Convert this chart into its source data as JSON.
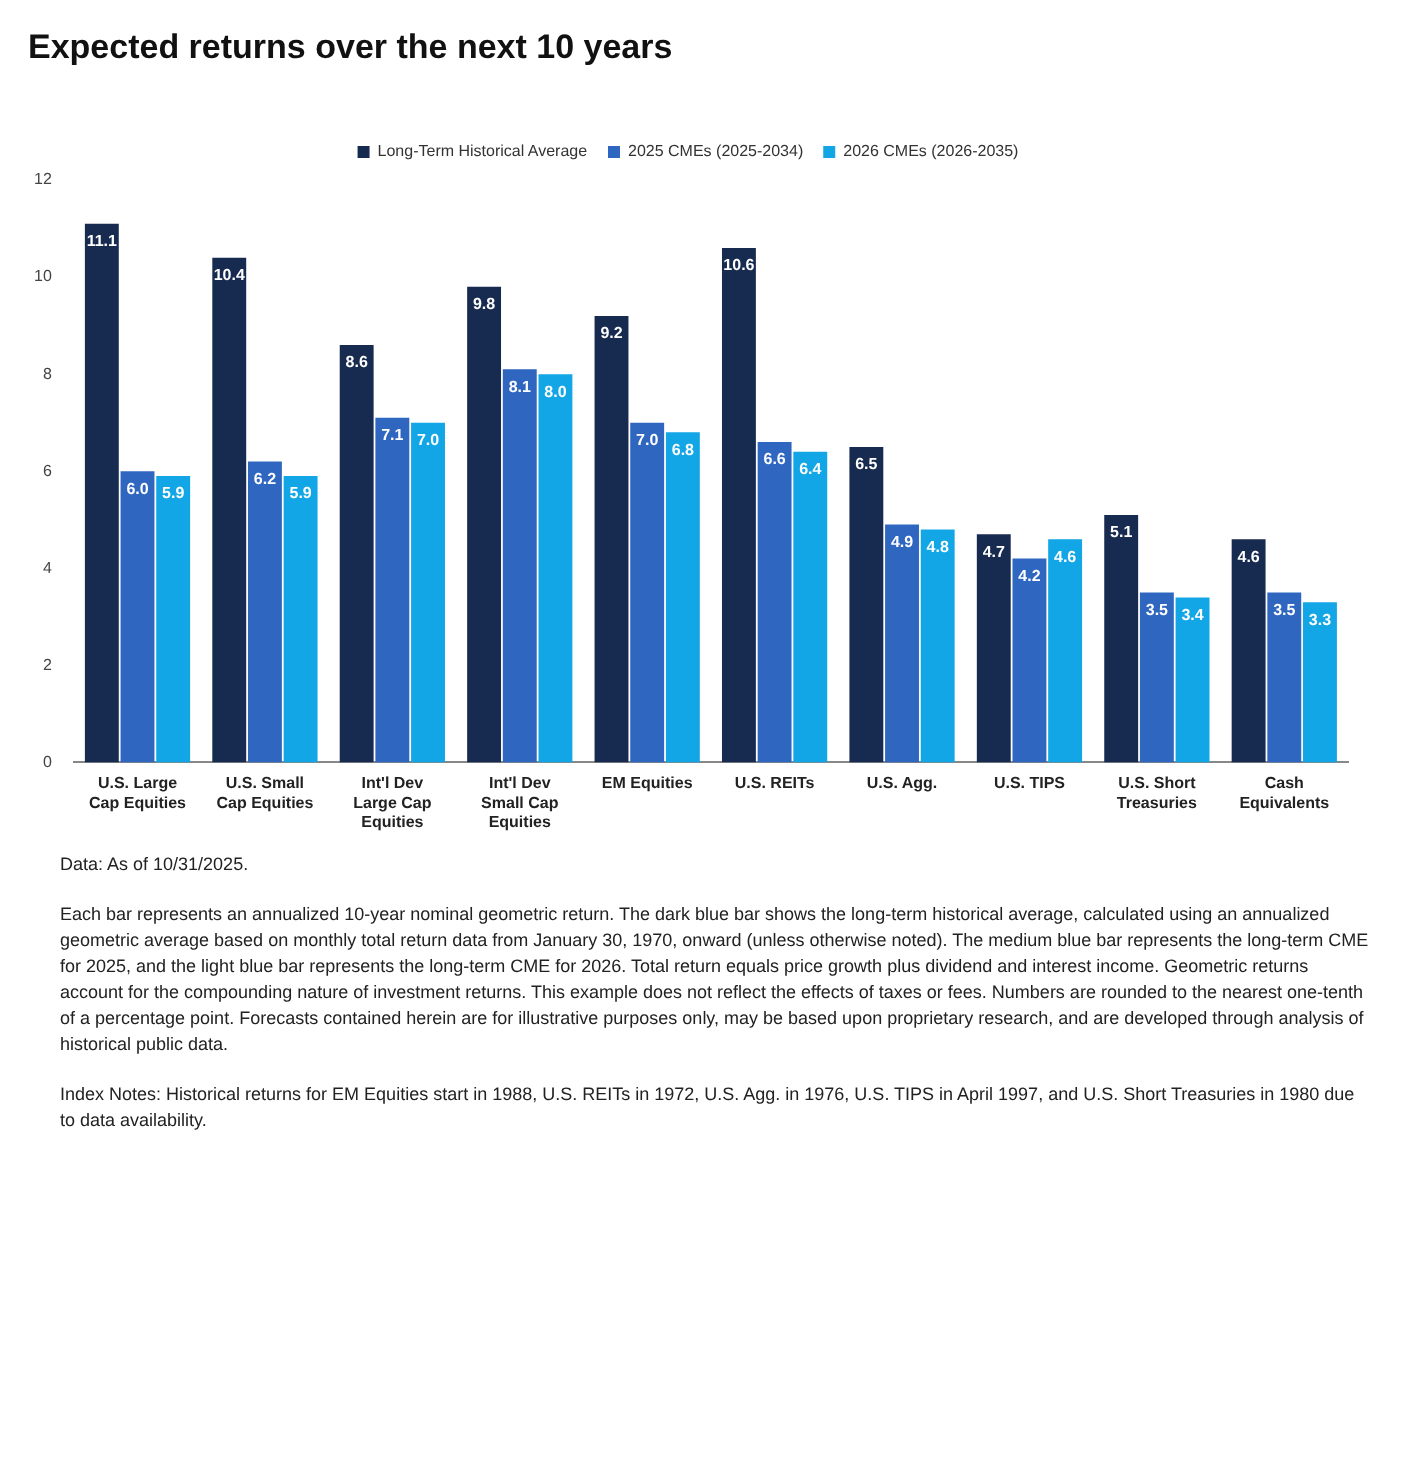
{
  "chart_data": {
    "type": "bar",
    "title": "Expected returns over the next 10 years",
    "categories": [
      "U.S. Large Cap Equities",
      "U.S. Small Cap Equities",
      "Int'l Dev Large Cap Equities",
      "Int'l Dev Small Cap Equities",
      "EM Equities",
      "U.S. REITs",
      "U.S. Agg.",
      "U.S. TIPS",
      "U.S. Short Treasuries",
      "Cash Equivalents"
    ],
    "series": [
      {
        "name": "Long-Term Historical Average",
        "color": "#172a4f",
        "values": [
          11.1,
          10.4,
          8.6,
          9.8,
          9.2,
          10.6,
          6.5,
          4.7,
          5.1,
          4.6
        ],
        "value_labels": [
          "11.1",
          "10.4",
          "8.6",
          "9.8",
          "9.2",
          "10.6",
          "6.5",
          "4.7",
          "5.1",
          "4.6"
        ]
      },
      {
        "name": "2025 CMEs (2025-2034)",
        "color": "#2f66c0",
        "values": [
          6.0,
          6.2,
          7.1,
          8.1,
          7.0,
          6.6,
          4.9,
          4.2,
          3.5,
          3.5
        ],
        "value_labels": [
          "6.0",
          "6.2",
          "7.1",
          "8.1",
          "7.0",
          "6.6",
          "4.9",
          "4.2",
          "3.5",
          "3.5"
        ]
      },
      {
        "name": "2026 CMEs (2026-2035)",
        "color": "#12a6e6",
        "values": [
          5.9,
          5.9,
          7.0,
          8.0,
          6.8,
          6.4,
          4.8,
          4.6,
          3.4,
          3.3
        ],
        "value_labels": [
          "5.9",
          "5.9",
          "7.0",
          "8.0",
          "6.8",
          "6.4",
          "4.8",
          "4.6",
          "3.4",
          "3.3"
        ]
      }
    ],
    "ylim": [
      0,
      12
    ],
    "yticks": [
      0,
      2,
      4,
      6,
      8,
      10,
      12
    ],
    "grid": false,
    "legend": "top",
    "annotations": [
      "Data: As of 10/31/2025.",
      "Each bar represents an annualized 10-year nominal geometric return. The dark blue bar shows the long-term historical average, calculated using an annualized geometric average based on monthly total return data from January 30, 1970, onward (unless otherwise noted). The medium blue bar represents the long-term CME for 2025, and the light blue bar represents the long-term CME for 2026. Total return equals price growth plus dividend and interest income. Geometric returns account for the compounding nature of investment returns. This example does not reflect the effects of taxes or fees. Numbers are rounded to the nearest one-tenth of a percentage point. Forecasts contained herein are for illustrative purposes only, may be based upon proprietary research, and are developed through analysis of historical public data.",
      "Index Notes: Historical returns for EM Equities start in 1988, U.S. REITs in 1972, U.S. Agg. in 1976, U.S. TIPS in April 1997, and U.S. Short Treasuries in 1980 due to data availability."
    ]
  }
}
